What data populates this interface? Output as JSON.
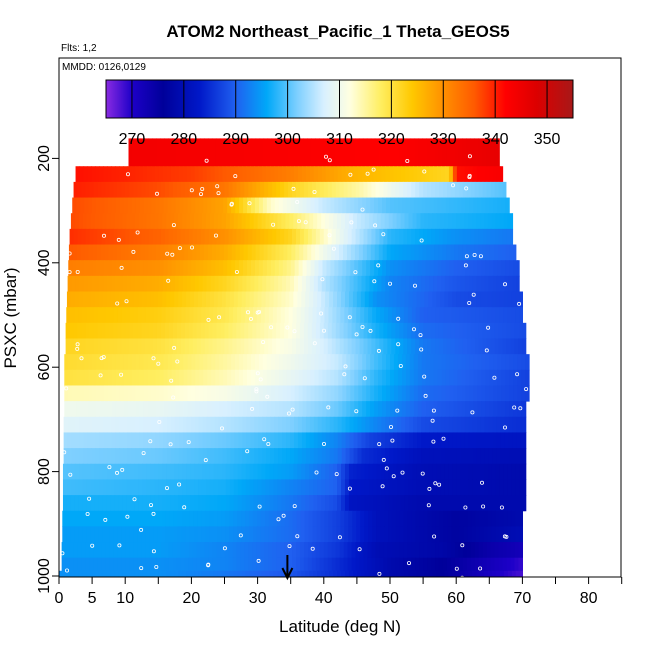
{
  "header": {
    "flights_label": "Flts: 1,2",
    "mmdd_label": "MMDD: 0126,0129"
  },
  "chart_data": {
    "type": "heatmap",
    "title": "ATOM2 Northeast_Pacific_1 Theta_GEOS5",
    "xlabel": "Latitude (deg N)",
    "ylabel": "PSXC (mbar)",
    "xlim": [
      0,
      85
    ],
    "ylim": [
      1000,
      100
    ],
    "y_inverted": true,
    "x_ticks": [
      0,
      5,
      10,
      20,
      30,
      40,
      50,
      60,
      70,
      80
    ],
    "x_minor_ticks": [
      15,
      25,
      35,
      45,
      55,
      65,
      75,
      85
    ],
    "y_ticks": [
      200,
      400,
      600,
      800,
      1000
    ],
    "colorbar": {
      "range": [
        265,
        355
      ],
      "ticks": [
        270,
        280,
        290,
        300,
        310,
        320,
        330,
        340,
        350
      ],
      "stops": [
        {
          "v": 265,
          "c": "#8a2be2"
        },
        {
          "v": 270,
          "c": "#1d00c8"
        },
        {
          "v": 276,
          "c": "#00009a"
        },
        {
          "v": 283,
          "c": "#0018c8"
        },
        {
          "v": 290,
          "c": "#2060f0"
        },
        {
          "v": 296,
          "c": "#00a8f8"
        },
        {
          "v": 302,
          "c": "#80d0ff"
        },
        {
          "v": 307,
          "c": "#d8f0ff"
        },
        {
          "v": 312,
          "c": "#ffffe0"
        },
        {
          "v": 318,
          "c": "#ffee60"
        },
        {
          "v": 324,
          "c": "#ffc800"
        },
        {
          "v": 330,
          "c": "#ff9000"
        },
        {
          "v": 336,
          "c": "#ff5a00"
        },
        {
          "v": 342,
          "c": "#ff0000"
        },
        {
          "v": 348,
          "c": "#dc0000"
        },
        {
          "v": 355,
          "c": "#a81818"
        }
      ]
    },
    "levels": [
      {
        "p": 200,
        "lat_min": 10.5,
        "lat_max": 66.5,
        "theta": [
          [
            10.5,
            344
          ],
          [
            30,
            343
          ],
          [
            50,
            342
          ],
          [
            66.5,
            346
          ]
        ]
      },
      {
        "p": 230,
        "lat_min": 2.5,
        "lat_max": 67,
        "theta": [
          [
            2.5,
            341
          ],
          [
            20,
            338
          ],
          [
            35,
            332
          ],
          [
            45,
            326
          ],
          [
            59,
            322
          ],
          [
            60,
            341
          ],
          [
            67,
            343
          ]
        ]
      },
      {
        "p": 260,
        "lat_min": 2.2,
        "lat_max": 67.5,
        "theta": [
          [
            2.2,
            340
          ],
          [
            15,
            337
          ],
          [
            25,
            333
          ],
          [
            35,
            322
          ],
          [
            45,
            315
          ],
          [
            55,
            305
          ],
          [
            67.5,
            300
          ]
        ]
      },
      {
        "p": 290,
        "lat_min": 2,
        "lat_max": 68,
        "theta": [
          [
            2,
            337
          ],
          [
            15,
            333
          ],
          [
            25,
            328
          ],
          [
            32,
            313
          ],
          [
            40,
            306
          ],
          [
            50,
            300
          ],
          [
            68,
            297
          ]
        ]
      },
      {
        "p": 320,
        "lat_min": 1.8,
        "lat_max": 68.5,
        "theta": [
          [
            1.8,
            337
          ],
          [
            15,
            333
          ],
          [
            25,
            328
          ],
          [
            35,
            318
          ],
          [
            45,
            306
          ],
          [
            55,
            298
          ],
          [
            68.5,
            296
          ]
        ]
      },
      {
        "p": 350,
        "lat_min": 1.6,
        "lat_max": 68.5,
        "theta": [
          [
            1.6,
            339
          ],
          [
            15,
            335
          ],
          [
            25,
            330
          ],
          [
            35,
            322
          ],
          [
            42,
            310
          ],
          [
            50,
            298
          ],
          [
            60,
            294
          ],
          [
            68.5,
            292
          ]
        ]
      },
      {
        "p": 380,
        "lat_min": 1.5,
        "lat_max": 69,
        "theta": [
          [
            1.5,
            336
          ],
          [
            15,
            332
          ],
          [
            25,
            327
          ],
          [
            35,
            318
          ],
          [
            40,
            310
          ],
          [
            50,
            296
          ],
          [
            60,
            292
          ],
          [
            69,
            290
          ]
        ]
      },
      {
        "p": 410,
        "lat_min": 1.4,
        "lat_max": 69.5,
        "theta": [
          [
            1.4,
            332
          ],
          [
            15,
            330
          ],
          [
            25,
            325
          ],
          [
            35,
            316
          ],
          [
            40,
            306
          ],
          [
            50,
            294
          ],
          [
            60,
            290
          ],
          [
            69.5,
            288
          ]
        ]
      },
      {
        "p": 440,
        "lat_min": 1.3,
        "lat_max": 69.5,
        "theta": [
          [
            1.3,
            329
          ],
          [
            15,
            327
          ],
          [
            25,
            322
          ],
          [
            35,
            314
          ],
          [
            40,
            305
          ],
          [
            50,
            293
          ],
          [
            60,
            289
          ],
          [
            69.5,
            287
          ]
        ]
      },
      {
        "p": 470,
        "lat_min": 1.2,
        "lat_max": 70,
        "theta": [
          [
            1.2,
            327
          ],
          [
            15,
            325
          ],
          [
            25,
            320
          ],
          [
            35,
            313
          ],
          [
            40,
            306
          ],
          [
            48,
            294
          ],
          [
            60,
            288
          ],
          [
            70,
            287
          ]
        ]
      },
      {
        "p": 500,
        "lat_min": 1.1,
        "lat_max": 70,
        "theta": [
          [
            1.1,
            325
          ],
          [
            15,
            323
          ],
          [
            25,
            319
          ],
          [
            35,
            312
          ],
          [
            40,
            306
          ],
          [
            48,
            296
          ],
          [
            55,
            290
          ],
          [
            70,
            288
          ]
        ]
      },
      {
        "p": 530,
        "lat_min": 1,
        "lat_max": 70.5,
        "theta": [
          [
            1,
            324
          ],
          [
            15,
            322
          ],
          [
            25,
            318
          ],
          [
            35,
            312
          ],
          [
            40,
            306
          ],
          [
            48,
            297
          ],
          [
            55,
            291
          ],
          [
            70.5,
            288
          ]
        ]
      },
      {
        "p": 560,
        "lat_min": 1,
        "lat_max": 70.5,
        "theta": [
          [
            1,
            322
          ],
          [
            15,
            320
          ],
          [
            25,
            316
          ],
          [
            35,
            311
          ],
          [
            40,
            307
          ],
          [
            48,
            299
          ],
          [
            55,
            292
          ],
          [
            70.5,
            287
          ]
        ]
      },
      {
        "p": 590,
        "lat_min": 0.8,
        "lat_max": 71,
        "theta": [
          [
            0.8,
            321
          ],
          [
            15,
            319
          ],
          [
            25,
            315
          ],
          [
            35,
            310
          ],
          [
            42,
            306
          ],
          [
            48,
            299
          ],
          [
            55,
            292
          ],
          [
            71,
            288
          ]
        ]
      },
      {
        "p": 620,
        "lat_min": 0.8,
        "lat_max": 71,
        "theta": [
          [
            0.8,
            320
          ],
          [
            15,
            318
          ],
          [
            25,
            314
          ],
          [
            35,
            309
          ],
          [
            42,
            305
          ],
          [
            48,
            298
          ],
          [
            55,
            292
          ],
          [
            71,
            287
          ]
        ]
      },
      {
        "p": 650,
        "lat_min": 0.8,
        "lat_max": 71,
        "theta": [
          [
            0.8,
            314
          ],
          [
            15,
            313
          ],
          [
            25,
            311
          ],
          [
            35,
            307
          ],
          [
            42,
            303
          ],
          [
            48,
            297
          ],
          [
            55,
            291
          ],
          [
            71,
            287
          ]
        ]
      },
      {
        "p": 680,
        "lat_min": 0.8,
        "lat_max": 70.5,
        "theta": [
          [
            0.8,
            310
          ],
          [
            15,
            309
          ],
          [
            25,
            307
          ],
          [
            35,
            305
          ],
          [
            42,
            301
          ],
          [
            48,
            295
          ],
          [
            55,
            290
          ],
          [
            70.5,
            286
          ]
        ]
      },
      {
        "p": 710,
        "lat_min": 0.7,
        "lat_max": 70.5,
        "theta": [
          [
            0.7,
            308
          ],
          [
            15,
            307
          ],
          [
            25,
            305
          ],
          [
            35,
            302
          ],
          [
            42,
            298
          ],
          [
            48,
            293
          ],
          [
            55,
            288
          ],
          [
            70.5,
            285
          ]
        ]
      },
      {
        "p": 740,
        "lat_min": 0.7,
        "lat_max": 70.5,
        "theta": [
          [
            0.7,
            304
          ],
          [
            15,
            303
          ],
          [
            25,
            301
          ],
          [
            35,
            298
          ],
          [
            42,
            293
          ],
          [
            47,
            287
          ],
          [
            55,
            283
          ],
          [
            70.5,
            282
          ]
        ]
      },
      {
        "p": 770,
        "lat_min": 0.7,
        "lat_max": 70.5,
        "theta": [
          [
            0.7,
            302
          ],
          [
            15,
            301
          ],
          [
            25,
            299
          ],
          [
            35,
            296
          ],
          [
            42,
            292
          ],
          [
            46,
            285
          ],
          [
            55,
            281
          ],
          [
            70.5,
            280
          ]
        ]
      },
      {
        "p": 800,
        "lat_min": 0.6,
        "lat_max": 70.5,
        "theta": [
          [
            0.6,
            300
          ],
          [
            15,
            299
          ],
          [
            25,
            298
          ],
          [
            35,
            295
          ],
          [
            42,
            290
          ],
          [
            44,
            284
          ],
          [
            55,
            280
          ],
          [
            70.5,
            279
          ]
        ]
      },
      {
        "p": 830,
        "lat_min": 0.6,
        "lat_max": 70.5,
        "theta": [
          [
            0.6,
            299
          ],
          [
            15,
            298
          ],
          [
            25,
            297
          ],
          [
            35,
            293
          ],
          [
            42,
            290
          ],
          [
            44,
            283
          ],
          [
            55,
            280
          ],
          [
            70.5,
            279
          ]
        ]
      },
      {
        "p": 860,
        "lat_min": 0.6,
        "lat_max": 70.5,
        "theta": [
          [
            0.6,
            297
          ],
          [
            15,
            297
          ],
          [
            25,
            296
          ],
          [
            35,
            292
          ],
          [
            42,
            288
          ],
          [
            44,
            282
          ],
          [
            55,
            279
          ],
          [
            70.5,
            279
          ]
        ]
      },
      {
        "p": 890,
        "lat_min": 0.5,
        "lat_max": 70,
        "theta": [
          [
            0.5,
            296
          ],
          [
            15,
            296
          ],
          [
            25,
            295
          ],
          [
            35,
            291
          ],
          [
            42,
            287
          ],
          [
            48,
            281
          ],
          [
            60,
            277
          ],
          [
            70,
            279
          ]
        ]
      },
      {
        "p": 920,
        "lat_min": 0.5,
        "lat_max": 70,
        "theta": [
          [
            0.5,
            295
          ],
          [
            15,
            295
          ],
          [
            25,
            294
          ],
          [
            35,
            291
          ],
          [
            42,
            287
          ],
          [
            48,
            281
          ],
          [
            60,
            277
          ],
          [
            70,
            280
          ]
        ]
      },
      {
        "p": 950,
        "lat_min": 0.4,
        "lat_max": 70,
        "theta": [
          [
            0.4,
            295
          ],
          [
            15,
            295
          ],
          [
            25,
            293
          ],
          [
            35,
            290
          ],
          [
            42,
            286
          ],
          [
            48,
            280
          ],
          [
            58,
            278
          ],
          [
            65,
            274
          ],
          [
            70,
            272
          ]
        ]
      },
      {
        "p": 980,
        "lat_min": 0.4,
        "lat_max": 70,
        "theta": [
          [
            0.4,
            294
          ],
          [
            15,
            294
          ],
          [
            25,
            293
          ],
          [
            35,
            290
          ],
          [
            42,
            285
          ],
          [
            50,
            279
          ],
          [
            58,
            276
          ],
          [
            65,
            272
          ],
          [
            70,
            269
          ]
        ]
      },
      {
        "p": 1000,
        "lat_min": 0,
        "lat_max": 70,
        "theta": [
          [
            0,
            294
          ],
          [
            15,
            294
          ],
          [
            25,
            292
          ],
          [
            35,
            289
          ],
          [
            42,
            285
          ],
          [
            50,
            279
          ],
          [
            58,
            276
          ],
          [
            65,
            271
          ],
          [
            70,
            268
          ]
        ]
      }
    ],
    "arrow_latitude": 34.5
  }
}
